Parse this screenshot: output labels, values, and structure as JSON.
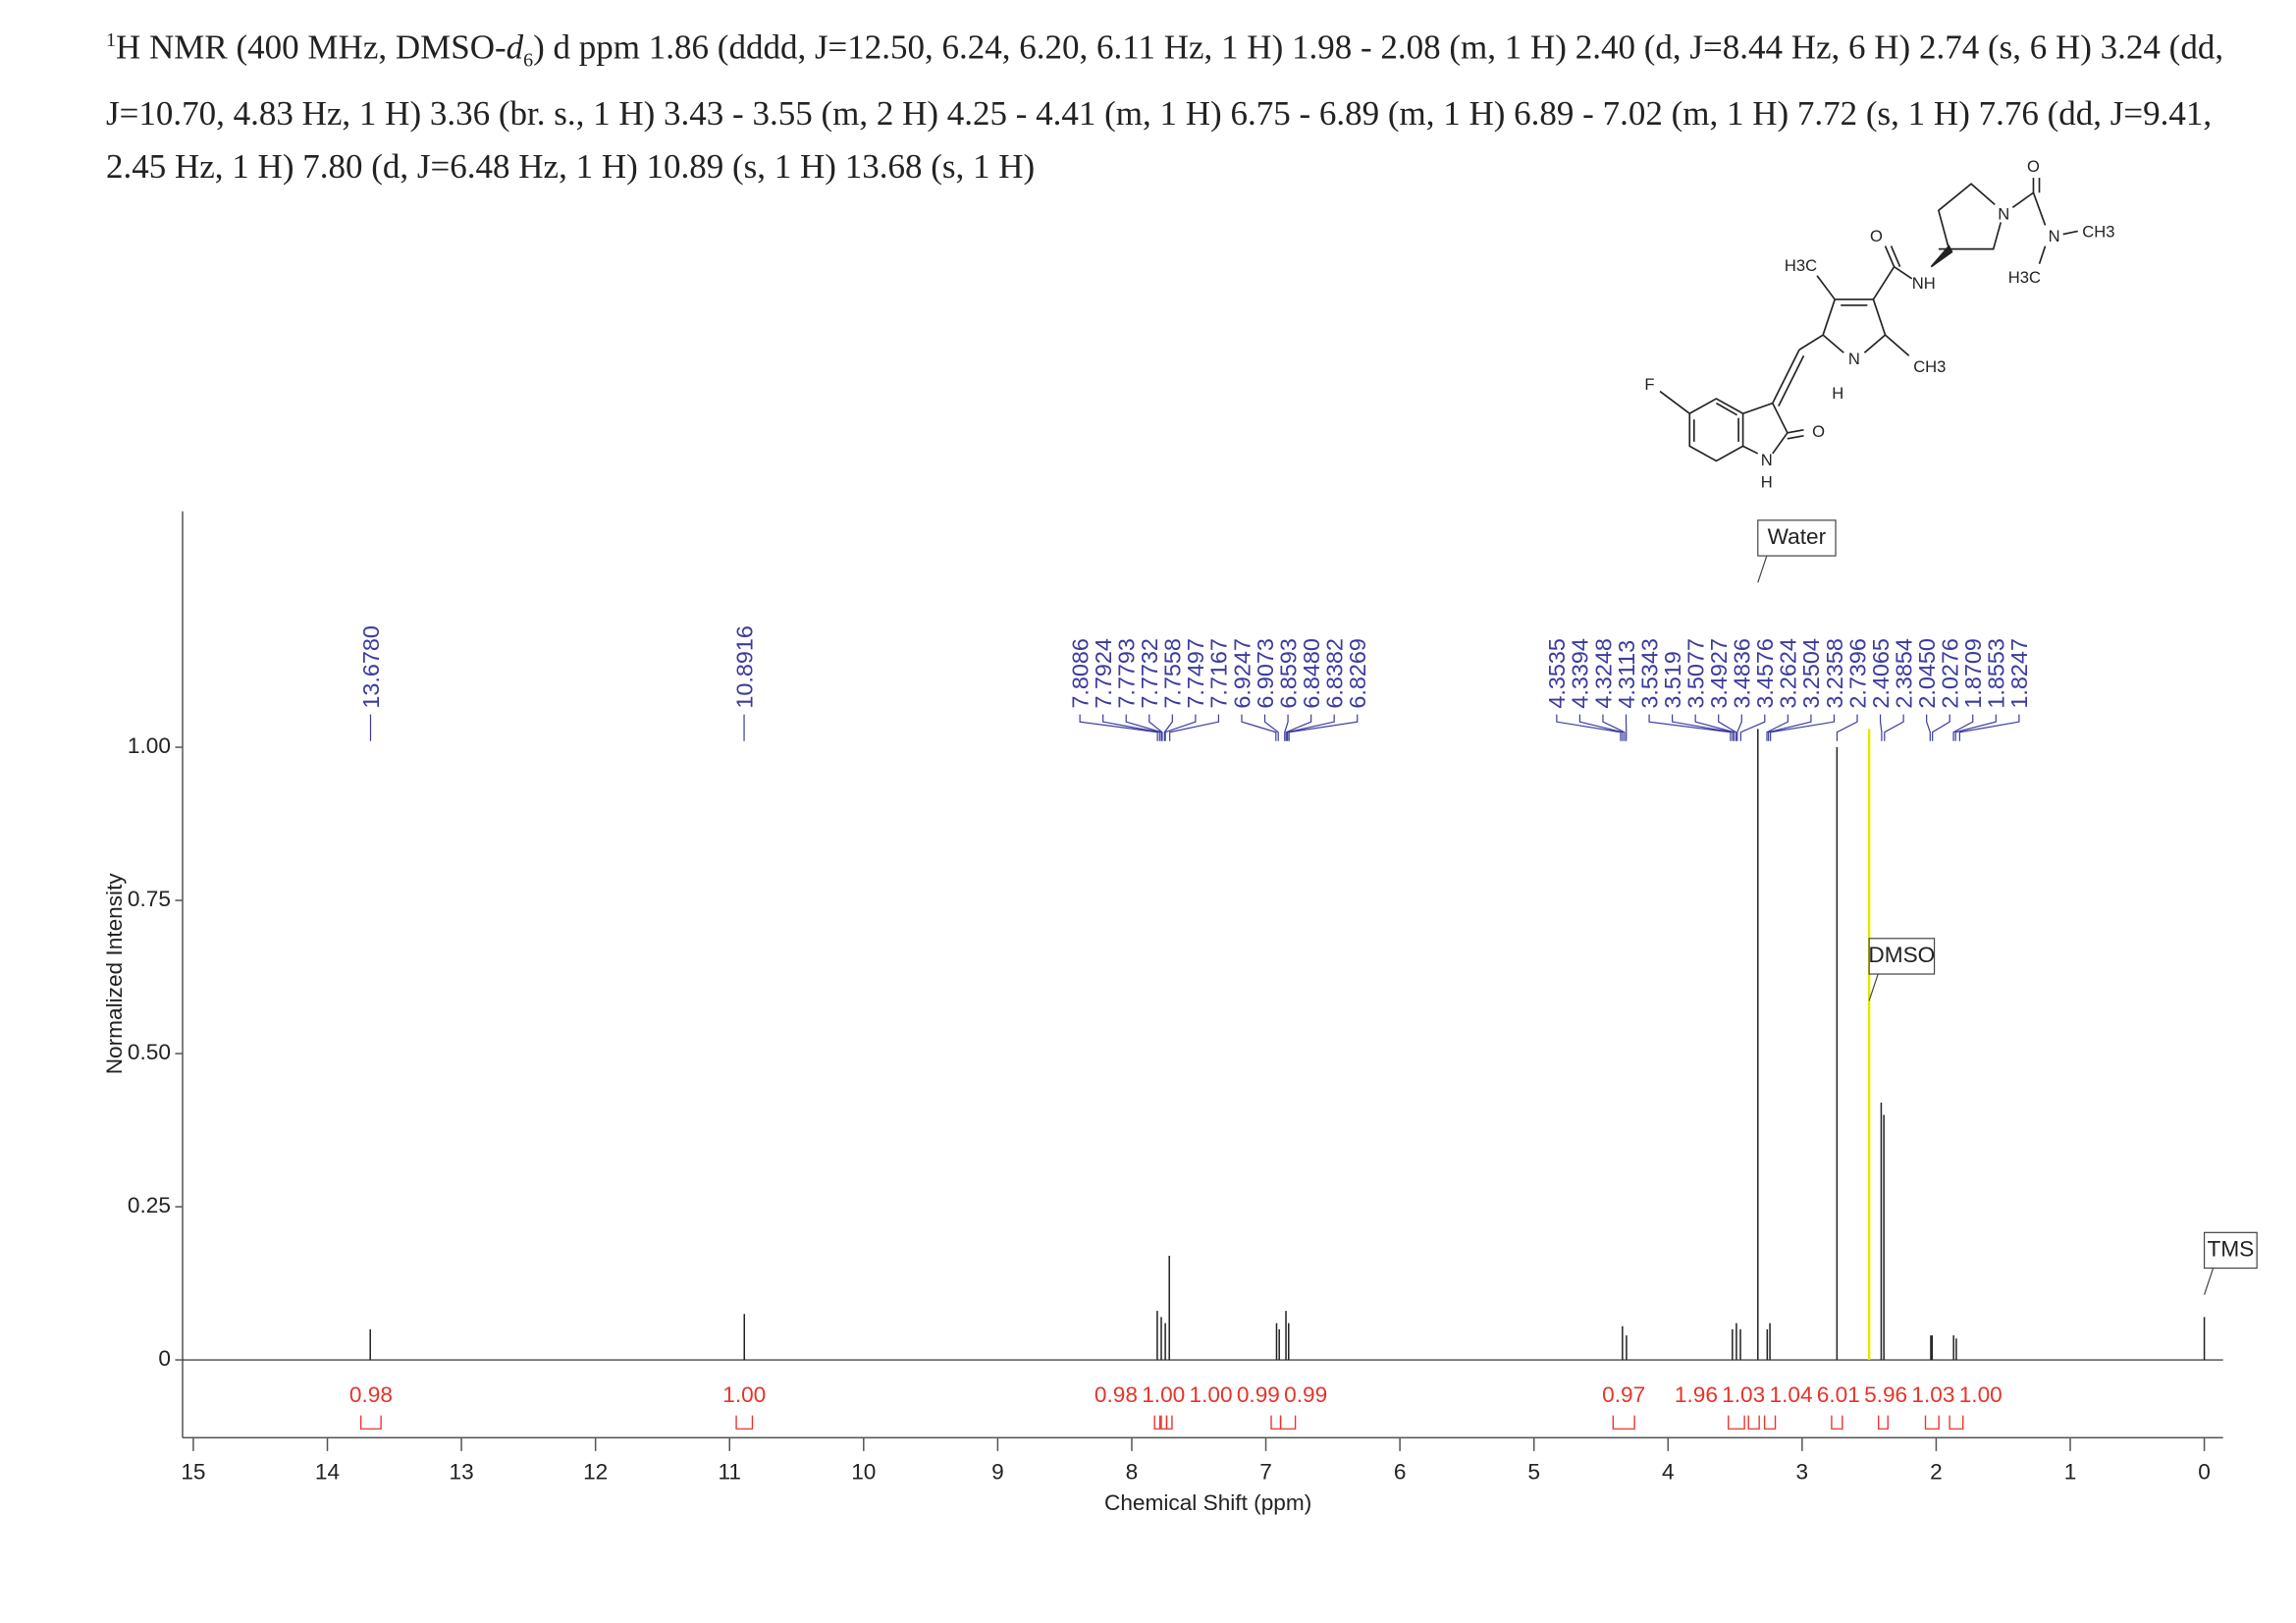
{
  "header": {
    "superscript": "1",
    "text": "H NMR (400 MHz, DMSO-",
    "italic": "d",
    "subscript": "6",
    "rest": ") d ppm 1.86 (dddd, J=12.50, 6.24, 6.20, 6.11 Hz, 1 H) 1.98 - 2.08 (m, 1 H) 2.40 (d, J=8.44 Hz, 6 H) 2.74 (s, 6 H) 3.24 (dd, J=10.70, 4.83 Hz, 1 H) 3.36 (br. s., 1 H) 3.43 - 3.55 (m, 2 H) 4.25 - 4.41 (m, 1 H) 6.75 - 6.89 (m, 1 H) 6.89 - 7.02 (m, 1 H) 7.72 (s, 1 H) 7.76 (dd, J=9.41, 2.45 Hz, 1 H) 7.80 (d, J=6.48 Hz, 1 H) 10.89 (s, 1 H) 13.68 (s, 1 H)"
  },
  "structure": {
    "labels": [
      "F",
      "N",
      "H",
      "O",
      "N",
      "H",
      "H3C",
      "CH3",
      "O",
      "NH",
      "N",
      "O",
      "N",
      "CH3",
      "H3C"
    ]
  },
  "chart_data": {
    "type": "nmr",
    "x_label": "Chemical Shift (ppm)",
    "y_label": "Normalized Intensity",
    "xlim": [
      15.08,
      -0.14
    ],
    "xticks": [
      15,
      14,
      13,
      12,
      11,
      10,
      9,
      8,
      7,
      6,
      5,
      4,
      3,
      2,
      1,
      0
    ],
    "ylim": [
      -0.127,
      1.385
    ],
    "yticks": [
      0,
      0.25,
      {
        "value": 0.5,
        "label": "0.50"
      },
      0.75,
      {
        "value": 1,
        "label": "1.00"
      }
    ],
    "color": "#222222",
    "peaks": {
      "ppm": [
        13.68,
        10.89,
        7.81,
        7.78,
        7.75,
        7.72,
        6.92,
        6.9,
        6.85,
        6.83,
        4.34,
        4.31,
        3.52,
        3.49,
        3.46,
        3.33,
        3.26,
        3.24,
        2.74,
        2.5,
        2.41,
        2.39,
        2.04,
        2.03,
        1.87,
        1.85,
        0
      ],
      "intensity": [
        0.05,
        0.075,
        0.08,
        0.07,
        0.06,
        0.17,
        0.06,
        0.05,
        0.08,
        0.06,
        0.055,
        0.04,
        0.05,
        0.06,
        0.05,
        1.03,
        0.05,
        0.06,
        1.0,
        0.55,
        0.42,
        0.4,
        0.04,
        0.04,
        0.04,
        0.035,
        0.07
      ]
    },
    "solvent_peak": {
      "ppm": 2.5,
      "intensity": 1.03,
      "color": "#e6e600"
    },
    "peak_label_color": "#3b3b9e",
    "peak_labels": [
      {
        "value": 13.678,
        "label": "13.6780"
      },
      10.8916,
      7.8086,
      7.7924,
      7.7793,
      7.7732,
      7.7558,
      7.7497,
      7.7167,
      6.9247,
      6.9073,
      6.8593,
      {
        "value": 6.848,
        "label": "6.8480"
      },
      6.8382,
      6.8269,
      4.3535,
      4.3394,
      4.3248,
      4.3113,
      3.5343,
      3.519,
      3.5077,
      3.4927,
      3.4836,
      3.4576,
      3.2624,
      3.2504,
      3.2358,
      2.7396,
      2.4065,
      2.3854,
      {
        "value": 2.045,
        "label": "2.0450"
      },
      2.0276,
      1.8709,
      1.8553,
      1.8247
    ],
    "integral_color": "#e8332a",
    "integrals": {
      "from": [
        13.75,
        10.95,
        7.83,
        7.78,
        7.74,
        6.96,
        6.89,
        4.41,
        3.55,
        3.4,
        3.28,
        2.78,
        2.43,
        2.08,
        1.9
      ],
      "to": [
        13.6,
        10.83,
        7.79,
        7.74,
        7.7,
        6.89,
        6.78,
        4.25,
        3.43,
        3.32,
        3.2,
        2.7,
        2.36,
        1.98,
        1.8
      ],
      "values": [
        0.98,
        1.0,
        0.98,
        1.0,
        1.0,
        0.99,
        0.99,
        0.97,
        1.96,
        1.03,
        1.04,
        6.01,
        5.96,
        1.03,
        1.0
      ],
      "value_labels": [
        "0.98",
        "1.00",
        "0.98",
        "1.00",
        "1.00",
        "0.99",
        "0.99",
        "0.97",
        "1.96",
        "1.03",
        "1.04",
        "6.01",
        "5.96",
        "1.03",
        "1.00"
      ]
    },
    "annotations": [
      {
        "text": "Water",
        "ppm": 3.33
      },
      {
        "text": "DMSO",
        "ppm": 2.5
      },
      {
        "text": "TMS",
        "ppm": 0
      }
    ]
  }
}
